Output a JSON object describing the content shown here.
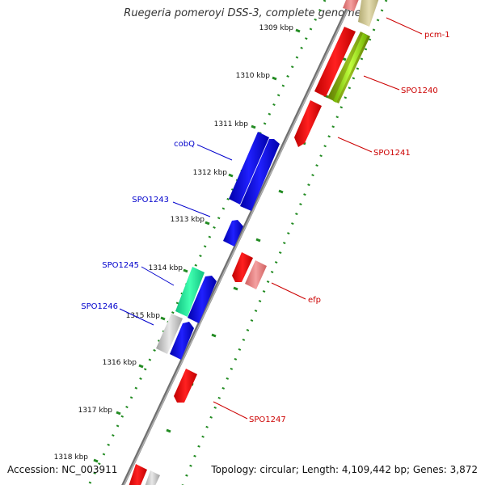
{
  "title": "Ruegeria pomeroyi DSS-3, complete genome",
  "footer": {
    "accession": "Accession: NC_003911",
    "summary": "Topology: circular; Length: 4,109,442 bp; Genes: 3,872"
  },
  "ticks": [
    "1309 kbp",
    "1310 kbp",
    "1311 kbp",
    "1312 kbp",
    "1313 kbp",
    "1314 kbp",
    "1315 kbp",
    "1316 kbp",
    "1317 kbp",
    "1318 kbp"
  ],
  "gene_labels": {
    "pcm1": "pcm-1",
    "spo1240": "SPO1240",
    "spo1241": "SPO1241",
    "cobq": "cobQ",
    "spo1243": "SPO1243",
    "spo1245": "SPO1245",
    "spo1246": "SPO1246",
    "efp": "efp",
    "spo1247": "SPO1247"
  },
  "colors": {
    "forward_label": "#0000cc",
    "reverse_label": "#cc0000",
    "backbone": "#808080",
    "tick_green": "#228b22"
  }
}
